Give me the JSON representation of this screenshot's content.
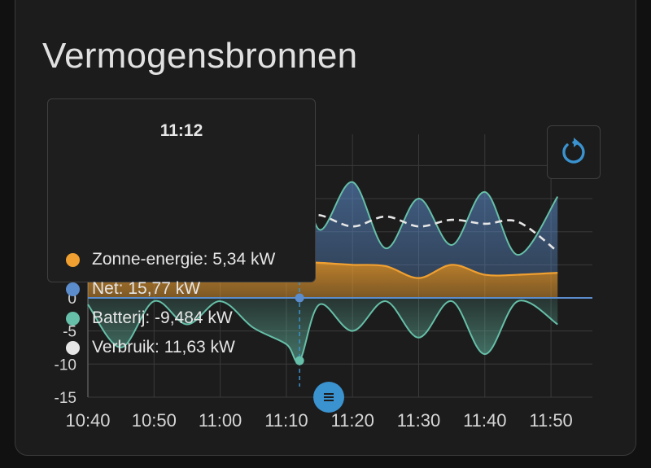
{
  "card": {
    "title": "Vermogensbronnen"
  },
  "colors": {
    "solar": "#f0a030",
    "grid": "#5b8ccc",
    "battery": "#66bfa8",
    "consumption": "#e6e6e6",
    "cursor": "#3a92cf",
    "gridline": "#3a3a3a"
  },
  "tooltip": {
    "time": "11:12",
    "rows": [
      {
        "label": "Zonne-energie: 5,34 kW",
        "color": "#f0a030"
      },
      {
        "label": "Net: 15,77 kW",
        "color": "#5b8ccc"
      },
      {
        "label": "Batterij: -9,484 kW",
        "color": "#66bfa8"
      },
      {
        "label": "Verbruik: 11,63 kW",
        "color": "#e6e6e6"
      }
    ]
  },
  "controls": {
    "reset_icon": "reset-zoom-icon",
    "handle_icon": "drag-handle-icon"
  },
  "chart_data": {
    "type": "area",
    "x": [
      "10:40",
      "10:45",
      "10:50",
      "10:55",
      "11:00",
      "11:05",
      "11:10",
      "11:12",
      "11:15",
      "11:20",
      "11:25",
      "11:30",
      "11:35",
      "11:40",
      "11:45",
      "11:51"
    ],
    "x_ticks": [
      "10:40",
      "10:50",
      "11:00",
      "11:10",
      "11:20",
      "11:30",
      "11:40",
      "11:50"
    ],
    "y_ticks": [
      "-15",
      "-10",
      "-5",
      "0"
    ],
    "ylim": [
      -15,
      22
    ],
    "cursor_x": "11:12",
    "series": [
      {
        "name": "Zonne-energie",
        "values": [
          4,
          4,
          4,
          4,
          4,
          4,
          5,
          5.34,
          5.3,
          5,
          4.8,
          3,
          5,
          3.5,
          3.5,
          3.8
        ]
      },
      {
        "name": "Net",
        "values": [
          14,
          14,
          14,
          14,
          14,
          14,
          13,
          15.77,
          5,
          12.5,
          2.7,
          12,
          3,
          12.5,
          3,
          11.5
        ]
      },
      {
        "name": "Batterij",
        "values": [
          -1,
          -7.5,
          -0.5,
          -4,
          -0.5,
          -4.5,
          -7,
          -9.484,
          -1,
          -5,
          -0.5,
          -6,
          -0.5,
          -8.5,
          -0.5,
          -4
        ]
      },
      {
        "name": "Verbruik",
        "values": [
          11.8,
          11.8,
          11.8,
          11.8,
          11.8,
          11.8,
          11.6,
          11.63,
          12.5,
          10.8,
          12.3,
          10.8,
          11.8,
          11.2,
          11.5,
          7
        ]
      }
    ]
  }
}
